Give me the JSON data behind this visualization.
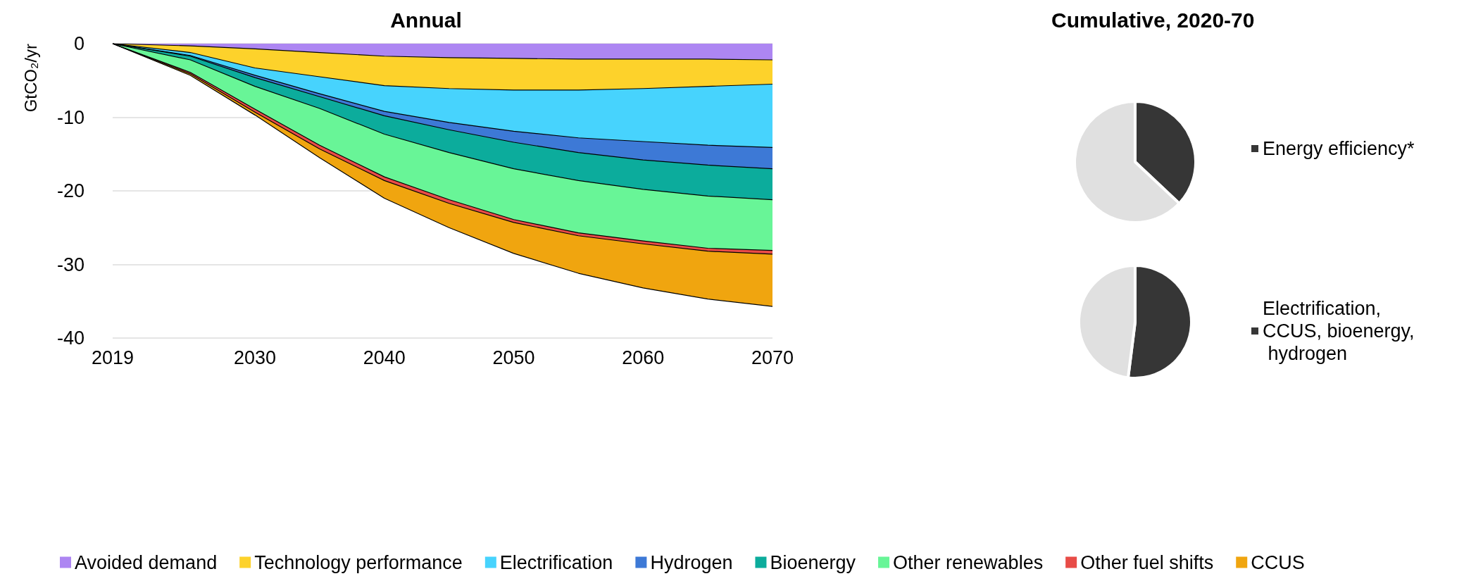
{
  "chart_data": [
    {
      "type": "area",
      "title": "Annual",
      "ylabel": "GtCO₂/yr",
      "stacked": true,
      "grid": "y",
      "legend": "bottom",
      "x": [
        2019,
        2025,
        2030,
        2035,
        2040,
        2045,
        2050,
        2055,
        2060,
        2065,
        2070
      ],
      "xlim": [
        2019,
        2070
      ],
      "xticks": [
        2019,
        2030,
        2040,
        2050,
        2060,
        2070
      ],
      "ylim": [
        -40,
        0
      ],
      "yticks": [
        -40,
        -30,
        -20,
        -10,
        0
      ],
      "series": [
        {
          "name": "Avoided demand",
          "color": "#ad86f2",
          "values": [
            0,
            -0.3,
            -0.7,
            -1.2,
            -1.7,
            -1.9,
            -2.0,
            -2.1,
            -2.1,
            -2.1,
            -2.2
          ]
        },
        {
          "name": "Technology performance",
          "color": "#fdd22b",
          "values": [
            0,
            -0.9,
            -2.6,
            -3.3,
            -4.0,
            -4.2,
            -4.3,
            -4.2,
            -4.0,
            -3.7,
            -3.3
          ]
        },
        {
          "name": "Electrification",
          "color": "#47d3fd",
          "values": [
            0,
            -0.4,
            -1.0,
            -2.3,
            -3.5,
            -4.6,
            -5.6,
            -6.5,
            -7.2,
            -8.0,
            -8.6
          ]
        },
        {
          "name": "Hydrogen",
          "color": "#3d79d6",
          "values": [
            0,
            -0.1,
            -0.3,
            -0.4,
            -0.6,
            -1.0,
            -1.5,
            -2.0,
            -2.5,
            -2.7,
            -2.9
          ]
        },
        {
          "name": "Bioenergy",
          "color": "#0cac9c",
          "values": [
            0,
            -0.5,
            -1.2,
            -1.6,
            -2.5,
            -3.1,
            -3.6,
            -3.8,
            -4.0,
            -4.2,
            -4.2
          ]
        },
        {
          "name": "Other renewables",
          "color": "#68f597",
          "values": [
            0,
            -1.7,
            -3.1,
            -5.0,
            -5.8,
            -6.4,
            -6.9,
            -7.1,
            -7.0,
            -7.1,
            -6.9
          ]
        },
        {
          "name": "Other fuel shifts",
          "color": "#e84c47",
          "values": [
            0,
            -0.2,
            -0.4,
            -0.5,
            -0.5,
            -0.5,
            -0.4,
            -0.4,
            -0.4,
            -0.4,
            -0.5
          ]
        },
        {
          "name": "CCUS",
          "color": "#f0a50f",
          "values": [
            0,
            -0.2,
            -0.4,
            -1.2,
            -2.4,
            -3.3,
            -4.2,
            -5.1,
            -6.0,
            -6.5,
            -7.1
          ]
        }
      ]
    },
    {
      "type": "pie",
      "title": "Cumulative, 2020-70",
      "legend": "right",
      "categories": [
        "Energy efficiency*",
        null
      ],
      "values": [
        37,
        63
      ],
      "colors": [
        "#363636",
        "#e0e0e0"
      ]
    },
    {
      "type": "pie",
      "legend": "right",
      "categories": [
        "Electrification, CCUS, bioenergy, hydrogen",
        null
      ],
      "values": [
        52,
        48
      ],
      "colors": [
        "#363636",
        "#e0e0e0"
      ]
    }
  ]
}
